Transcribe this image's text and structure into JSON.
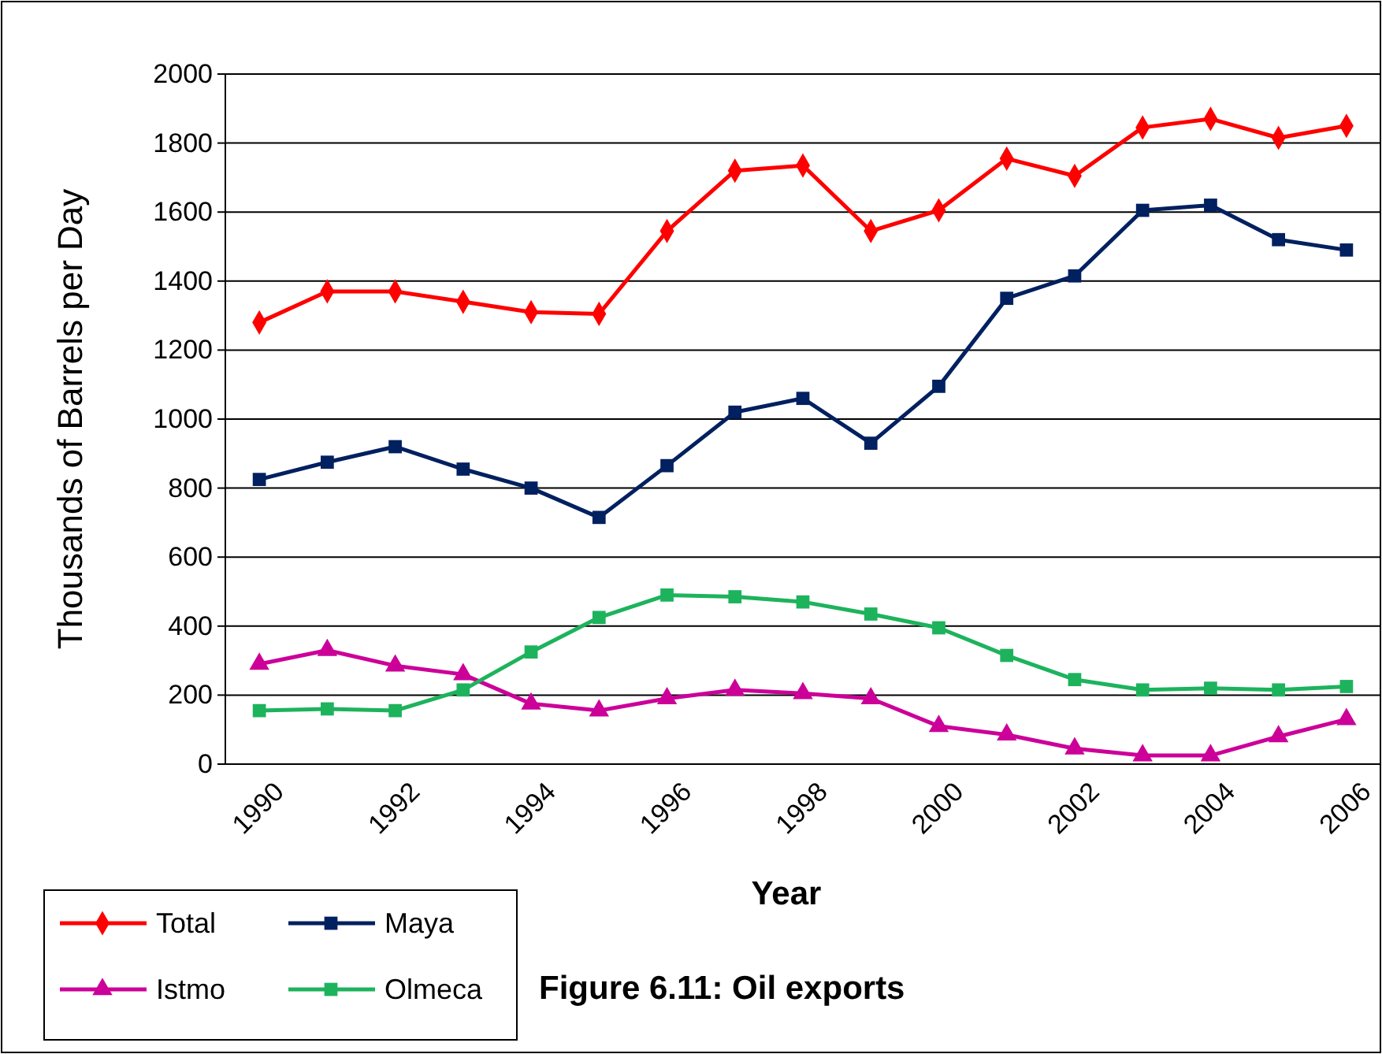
{
  "chart_data": {
    "type": "line",
    "title": "Figure 6.11: Oil exports",
    "xlabel": "Year",
    "ylabel": "Thousands  of  Barrels  per Day",
    "categories": [
      "1990",
      null,
      "1992",
      null,
      "1994",
      null,
      "1996",
      null,
      "1998",
      null,
      "2000",
      null,
      "2002",
      null,
      "2004",
      null,
      "2006"
    ],
    "ylim": [
      0,
      2000
    ],
    "yticks": [
      0,
      200,
      400,
      600,
      800,
      1000,
      1200,
      1400,
      1600,
      1800,
      2000
    ],
    "grid": "y",
    "legend": "bottom left",
    "series": [
      {
        "name": "Total",
        "color": "#ff0000",
        "marker": "diamond",
        "values": [
          1280,
          1370,
          1370,
          1340,
          1310,
          1305,
          1545,
          1720,
          1735,
          1545,
          1605,
          1755,
          1705,
          1845,
          1870,
          1815,
          1850
        ]
      },
      {
        "name": "Maya",
        "color": "#002060",
        "marker": "square",
        "values": [
          825,
          875,
          920,
          855,
          800,
          715,
          865,
          1020,
          1060,
          930,
          1095,
          1350,
          1415,
          1605,
          1620,
          1520,
          1490
        ]
      },
      {
        "name": "Istmo",
        "color": "#cc0099",
        "marker": "triangle",
        "values": [
          290,
          330,
          285,
          260,
          175,
          155,
          190,
          215,
          205,
          190,
          110,
          85,
          45,
          25,
          25,
          80,
          130
        ]
      },
      {
        "name": "Olmeca",
        "color": "#1db35c",
        "marker": "square",
        "values": [
          155,
          160,
          155,
          215,
          325,
          425,
          490,
          485,
          470,
          435,
          395,
          315,
          245,
          215,
          220,
          215,
          225
        ]
      }
    ]
  }
}
